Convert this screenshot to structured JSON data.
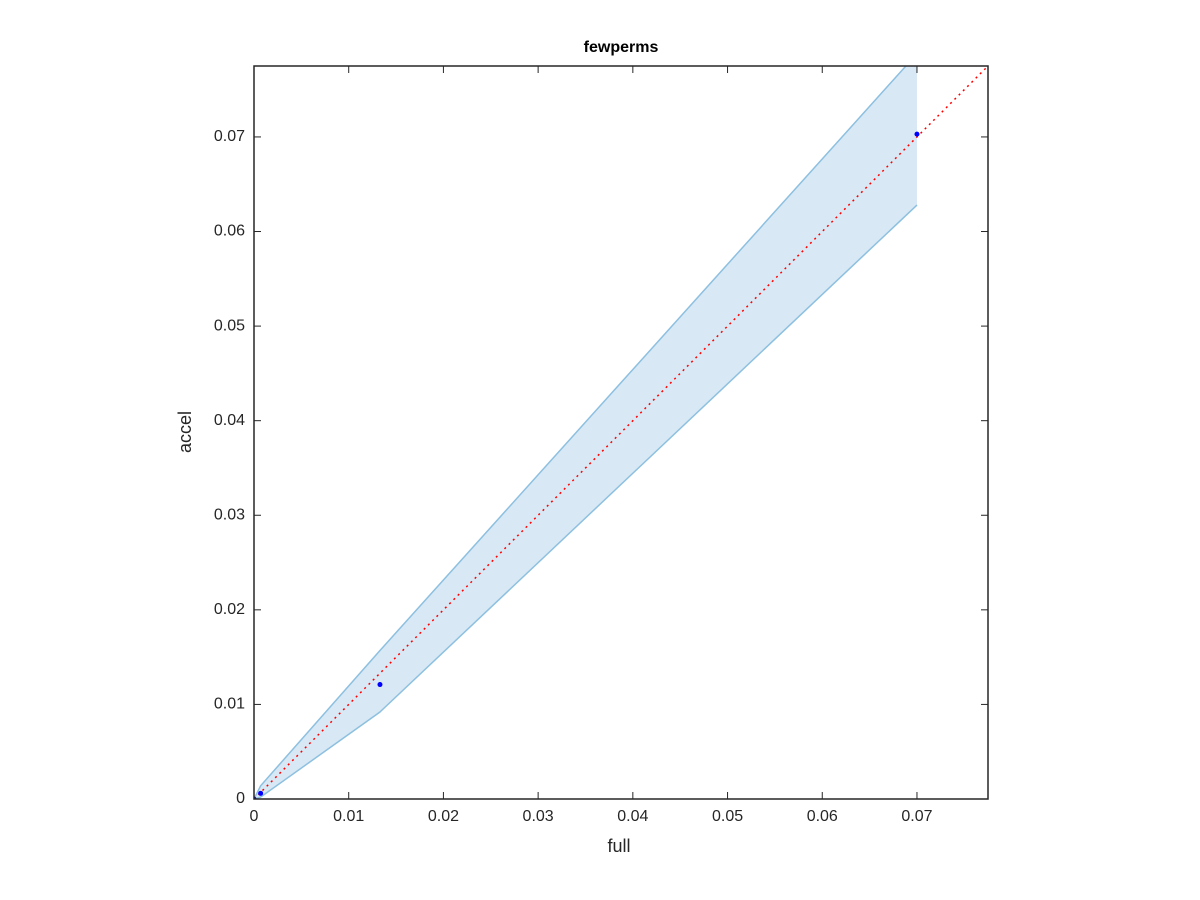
{
  "chart_data": {
    "type": "scatter",
    "title": "fewperms",
    "xlabel": "full",
    "ylabel": "accel",
    "x": [
      0,
      0.0007,
      0.0133,
      0.07
    ],
    "values": [
      0,
      0.0006,
      0.0121,
      0.0703
    ],
    "color": "#0000ff",
    "band": {
      "lower": [
        0,
        0.0002,
        0.0092,
        0.0628
      ],
      "upper": [
        0,
        0.0014,
        0.0157,
        0.0788
      ],
      "color": "#d8e8f4",
      "edge_color": "#8dc0e0"
    },
    "diagonal": {
      "color": "#ff0000",
      "style": "dotted"
    },
    "xlim": [
      0,
      0.0775
    ],
    "ylim": [
      0,
      0.0775
    ],
    "xticks": [
      0,
      0.01,
      0.02,
      0.03,
      0.04,
      0.05,
      0.06,
      0.07
    ],
    "yticks": [
      0,
      0.01,
      0.02,
      0.03,
      0.04,
      0.05,
      0.06,
      0.07
    ],
    "grid": false
  }
}
